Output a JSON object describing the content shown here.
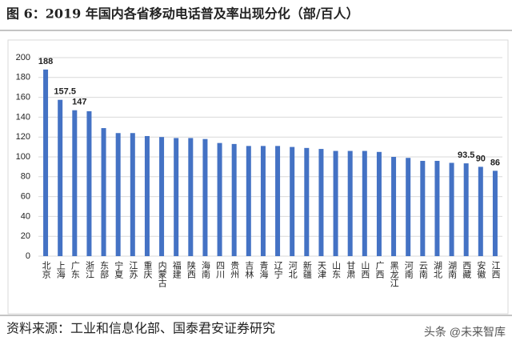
{
  "chart_data": {
    "type": "bar",
    "title": "图 6：2019 年国内各省移动电话普及率出现分化（部/百人）",
    "categories": [
      "北京",
      "上海",
      "广东",
      "浙江",
      "东部",
      "宁夏",
      "江苏",
      "重庆",
      "内蒙古",
      "福建",
      "陕西",
      "海南",
      "四川",
      "贵州",
      "吉林",
      "青海",
      "辽宁",
      "河北",
      "新疆",
      "天津",
      "山东",
      "甘肃",
      "山西",
      "广西",
      "黑龙江",
      "河南",
      "云南",
      "湖北",
      "湖南",
      "西藏",
      "安徽",
      "江西"
    ],
    "values": [
      188,
      157.5,
      147,
      146,
      129,
      124,
      124,
      121,
      120,
      119,
      119,
      118,
      114,
      113,
      111,
      111,
      111,
      110,
      109,
      108,
      106,
      106,
      106,
      105,
      100,
      99,
      96,
      96,
      94,
      93.5,
      90,
      86
    ],
    "value_labels": [
      "188",
      "157.5",
      "147",
      null,
      null,
      null,
      null,
      null,
      null,
      null,
      null,
      null,
      null,
      null,
      null,
      null,
      null,
      null,
      null,
      null,
      null,
      null,
      null,
      null,
      null,
      null,
      null,
      null,
      null,
      "93.5",
      "90",
      "86"
    ],
    "color": "#4472c4",
    "ylim": [
      0,
      200
    ],
    "yticks": [
      0,
      20,
      40,
      60,
      80,
      100,
      120,
      140,
      160,
      180,
      200
    ],
    "grid": true,
    "source": "资料来源：工业和信息化部、国泰君安证券研究",
    "watermark": "头条 @未来智库"
  }
}
